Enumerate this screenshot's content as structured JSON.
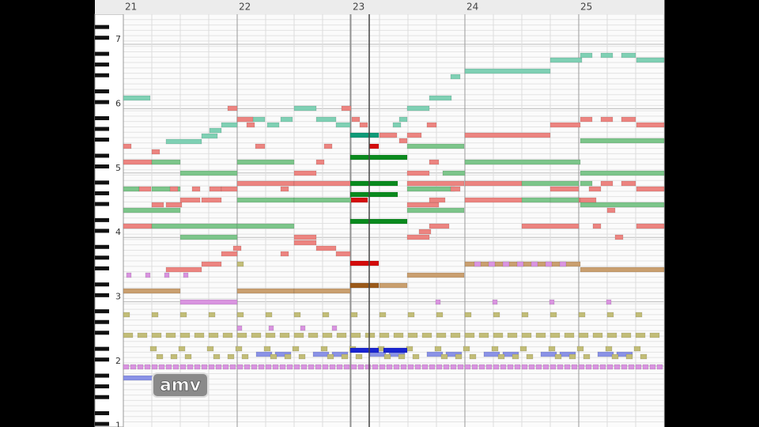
{
  "header": {
    "measures": [
      "21",
      "22",
      "23",
      "24",
      "25"
    ]
  },
  "keyboard": {
    "octaves": [
      "7",
      "6",
      "5",
      "4",
      "3",
      "2",
      "1"
    ]
  },
  "watermark": "amv"
}
